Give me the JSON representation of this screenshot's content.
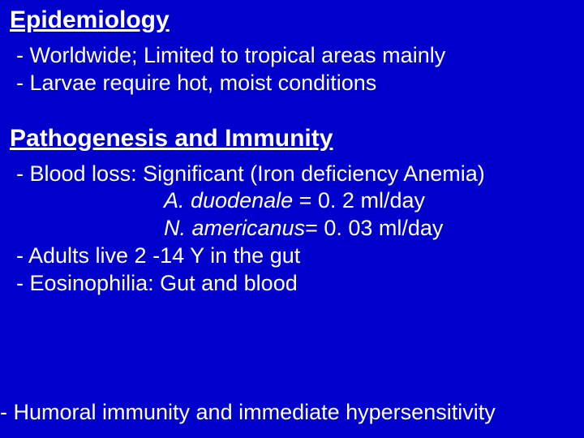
{
  "colors": {
    "background": "#0000cc",
    "text": "#ffffff"
  },
  "typography": {
    "heading_fontsize": 30,
    "body_fontsize": 27,
    "font_family": "Arial"
  },
  "section1": {
    "heading": "Epidemiology",
    "bullet1": "- Worldwide; Limited to tropical areas mainly",
    "bullet2": "- Larvae require hot, moist conditions"
  },
  "section2": {
    "heading": "Pathogenesis and Immunity",
    "bullet1": "- Blood loss: Significant (Iron deficiency Anemia)",
    "line_a_species": "A. duodenale",
    "line_a_rest": " = 0. 2 ml/day",
    "line_b_species": "N. americanus",
    "line_b_rest": "= 0. 03 ml/day",
    "bullet2": "- Adults live 2 -14 Y in the gut",
    "bullet3": "- Eosinophilia: Gut and blood"
  },
  "footer": {
    "text": "- Humoral immunity and immediate hypersensitivity"
  }
}
